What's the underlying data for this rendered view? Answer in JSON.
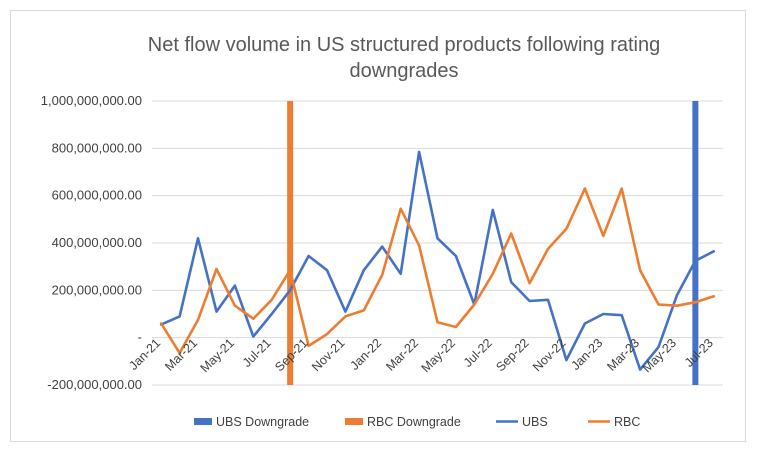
{
  "chart_data": {
    "type": "line",
    "title": "Net flow volume in US structured products following rating downgrades",
    "title_lines": [
      "Net flow volume in US structured products following rating",
      "downgrades"
    ],
    "xlabel": "",
    "ylabel": "",
    "ylim": [
      -200000000,
      1000000000
    ],
    "yticks": [
      -200000000,
      0,
      200000000,
      400000000,
      600000000,
      800000000,
      1000000000
    ],
    "ytick_labels": [
      "-200,000,000.00",
      "-",
      "200,000,000.00",
      "400,000,000.00",
      "600,000,000.00",
      "800,000,000.00",
      "1,000,000,000.00"
    ],
    "categories": [
      "Jan-21",
      "Feb-21",
      "Mar-21",
      "Apr-21",
      "May-21",
      "Jun-21",
      "Jul-21",
      "Aug-21",
      "Sep-21",
      "Oct-21",
      "Nov-21",
      "Dec-21",
      "Jan-22",
      "Feb-22",
      "Mar-22",
      "Apr-22",
      "May-22",
      "Jun-22",
      "Jul-22",
      "Aug-22",
      "Sep-22",
      "Oct-22",
      "Nov-22",
      "Dec-22",
      "Jan-23",
      "Feb-23",
      "Mar-23",
      "Apr-23",
      "May-23",
      "Jun-23",
      "Jul-23"
    ],
    "xtick_labels": [
      "Jan-21",
      "Mar-21",
      "May-21",
      "Jul-21",
      "Sep-21",
      "Nov-21",
      "Jan-22",
      "Mar-22",
      "May-22",
      "Jul-22",
      "Sep-22",
      "Nov-22",
      "Jan-23",
      "Mar-23",
      "May-23",
      "Jul-23"
    ],
    "series": [
      {
        "name": "UBS",
        "color": "#4472c4",
        "values": [
          55000000,
          90000000,
          420000000,
          110000000,
          220000000,
          5000000,
          100000000,
          200000000,
          345000000,
          285000000,
          110000000,
          285000000,
          385000000,
          270000000,
          785000000,
          420000000,
          345000000,
          140000000,
          540000000,
          235000000,
          155000000,
          160000000,
          -95000000,
          60000000,
          100000000,
          95000000,
          -135000000,
          -40000000,
          180000000,
          325000000,
          365000000
        ]
      },
      {
        "name": "RBC",
        "color": "#ed7d31",
        "values": [
          60000000,
          -65000000,
          75000000,
          290000000,
          135000000,
          80000000,
          160000000,
          285000000,
          -35000000,
          15000000,
          90000000,
          115000000,
          265000000,
          545000000,
          390000000,
          65000000,
          45000000,
          140000000,
          270000000,
          440000000,
          230000000,
          375000000,
          460000000,
          630000000,
          430000000,
          630000000,
          285000000,
          140000000,
          135000000,
          150000000,
          175000000
        ]
      }
    ],
    "markers": [
      {
        "name": "UBS Downgrade",
        "color": "#4472c4",
        "x": "Jun-23"
      },
      {
        "name": "RBC Downgrade",
        "color": "#ed7d31",
        "x": "Aug-21"
      }
    ],
    "legend": [
      "UBS Downgrade",
      "RBC Downgrade",
      "UBS",
      "RBC"
    ],
    "legend_position": "bottom",
    "grid": true
  }
}
